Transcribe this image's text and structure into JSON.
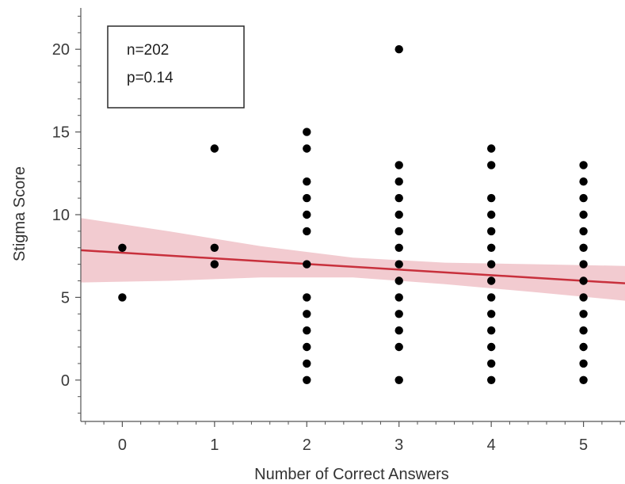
{
  "chart_data": {
    "type": "scatter",
    "title": "",
    "xlabel": "Number of Correct Answers",
    "ylabel": "Stigma Score",
    "xlim": [
      -0.45,
      5.45
    ],
    "ylim": [
      -2.5,
      22.5
    ],
    "xticks": [
      0,
      1,
      2,
      3,
      4,
      5
    ],
    "yticks": [
      0,
      5,
      10,
      15,
      20
    ],
    "grid": false,
    "legend": "none",
    "annotation": {
      "lines": [
        "n=202",
        "p=0.14"
      ],
      "placement": "top-left"
    },
    "series": [
      {
        "points": [
          [
            0,
            8
          ],
          [
            0,
            5
          ],
          [
            1,
            14
          ],
          [
            1,
            8
          ],
          [
            1,
            7
          ],
          [
            2,
            15
          ],
          [
            2,
            14
          ],
          [
            2,
            12
          ],
          [
            2,
            11
          ],
          [
            2,
            10
          ],
          [
            2,
            9
          ],
          [
            2,
            7
          ],
          [
            2,
            5
          ],
          [
            2,
            4
          ],
          [
            2,
            3
          ],
          [
            2,
            2
          ],
          [
            2,
            1
          ],
          [
            2,
            0
          ],
          [
            3,
            20
          ],
          [
            3,
            13
          ],
          [
            3,
            12
          ],
          [
            3,
            11
          ],
          [
            3,
            10
          ],
          [
            3,
            9
          ],
          [
            3,
            8
          ],
          [
            3,
            7
          ],
          [
            3,
            6
          ],
          [
            3,
            5
          ],
          [
            3,
            4
          ],
          [
            3,
            3
          ],
          [
            3,
            2
          ],
          [
            3,
            0
          ],
          [
            4,
            14
          ],
          [
            4,
            13
          ],
          [
            4,
            11
          ],
          [
            4,
            10
          ],
          [
            4,
            9
          ],
          [
            4,
            8
          ],
          [
            4,
            7
          ],
          [
            4,
            6
          ],
          [
            4,
            5
          ],
          [
            4,
            4
          ],
          [
            4,
            3
          ],
          [
            4,
            2
          ],
          [
            4,
            1
          ],
          [
            4,
            0
          ],
          [
            5,
            13
          ],
          [
            5,
            12
          ],
          [
            5,
            11
          ],
          [
            5,
            10
          ],
          [
            5,
            9
          ],
          [
            5,
            8
          ],
          [
            5,
            7
          ],
          [
            5,
            6
          ],
          [
            5,
            5
          ],
          [
            5,
            4
          ],
          [
            5,
            3
          ],
          [
            5,
            2
          ],
          [
            5,
            1
          ],
          [
            5,
            0
          ]
        ]
      }
    ],
    "fit_line": {
      "x": [
        -0.45,
        5.45
      ],
      "y": [
        7.85,
        5.85
      ]
    },
    "confidence_band": {
      "x": [
        -0.45,
        0.5,
        1.5,
        2.5,
        3.5,
        4.5,
        5.45
      ],
      "upper": [
        9.8,
        9.0,
        8.1,
        7.4,
        7.1,
        7.0,
        6.9
      ],
      "lower": [
        5.9,
        6.0,
        6.2,
        6.2,
        5.8,
        5.3,
        4.8
      ]
    },
    "colors": {
      "points": "#000000",
      "fit_line": "#c8303c",
      "band": "#f0c2c8",
      "axis": "#555555",
      "annotation_border": "#2a2a2a"
    }
  }
}
